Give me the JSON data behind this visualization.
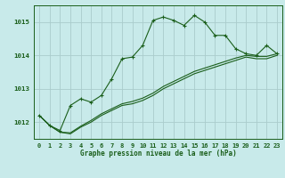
{
  "title": "Graphe pression niveau de la mer (hPa)",
  "xlabel": "Graphe pression niveau de la mer (hPa)",
  "background_color": "#c8eaea",
  "grid_color": "#aacccc",
  "line_color": "#1a5e1a",
  "ylim": [
    1011.5,
    1015.5
  ],
  "xlim": [
    -0.5,
    23.5
  ],
  "yticks": [
    1012,
    1013,
    1014,
    1015
  ],
  "xticks": [
    0,
    1,
    2,
    3,
    4,
    5,
    6,
    7,
    8,
    9,
    10,
    11,
    12,
    13,
    14,
    15,
    16,
    17,
    18,
    19,
    20,
    21,
    22,
    23
  ],
  "series": [
    [
      1012.2,
      1011.9,
      1011.75,
      1012.5,
      1012.7,
      1012.6,
      1012.8,
      1013.3,
      1013.9,
      1013.95,
      1014.3,
      1015.05,
      1015.15,
      1015.05,
      1014.9,
      1015.2,
      1015.0,
      1014.6,
      1014.6,
      1014.2,
      1014.05,
      1014.0,
      1014.3,
      1014.05
    ],
    [
      1012.2,
      1011.9,
      1011.7,
      1011.65,
      1011.85,
      1012.0,
      1012.2,
      1012.35,
      1012.5,
      1012.55,
      1012.65,
      1012.8,
      1013.0,
      1013.15,
      1013.3,
      1013.45,
      1013.55,
      1013.65,
      1013.75,
      1013.85,
      1013.95,
      1013.9,
      1013.9,
      1014.0
    ],
    [
      1012.2,
      1011.9,
      1011.7,
      1011.68,
      1011.88,
      1012.05,
      1012.25,
      1012.4,
      1012.55,
      1012.62,
      1012.72,
      1012.87,
      1013.07,
      1013.22,
      1013.37,
      1013.52,
      1013.62,
      1013.72,
      1013.82,
      1013.92,
      1014.0,
      1013.97,
      1013.97,
      1014.05
    ]
  ],
  "tick_fontsize": 5.0,
  "xlabel_fontsize": 5.5,
  "marker_size": 3.0,
  "line_width": 0.8
}
